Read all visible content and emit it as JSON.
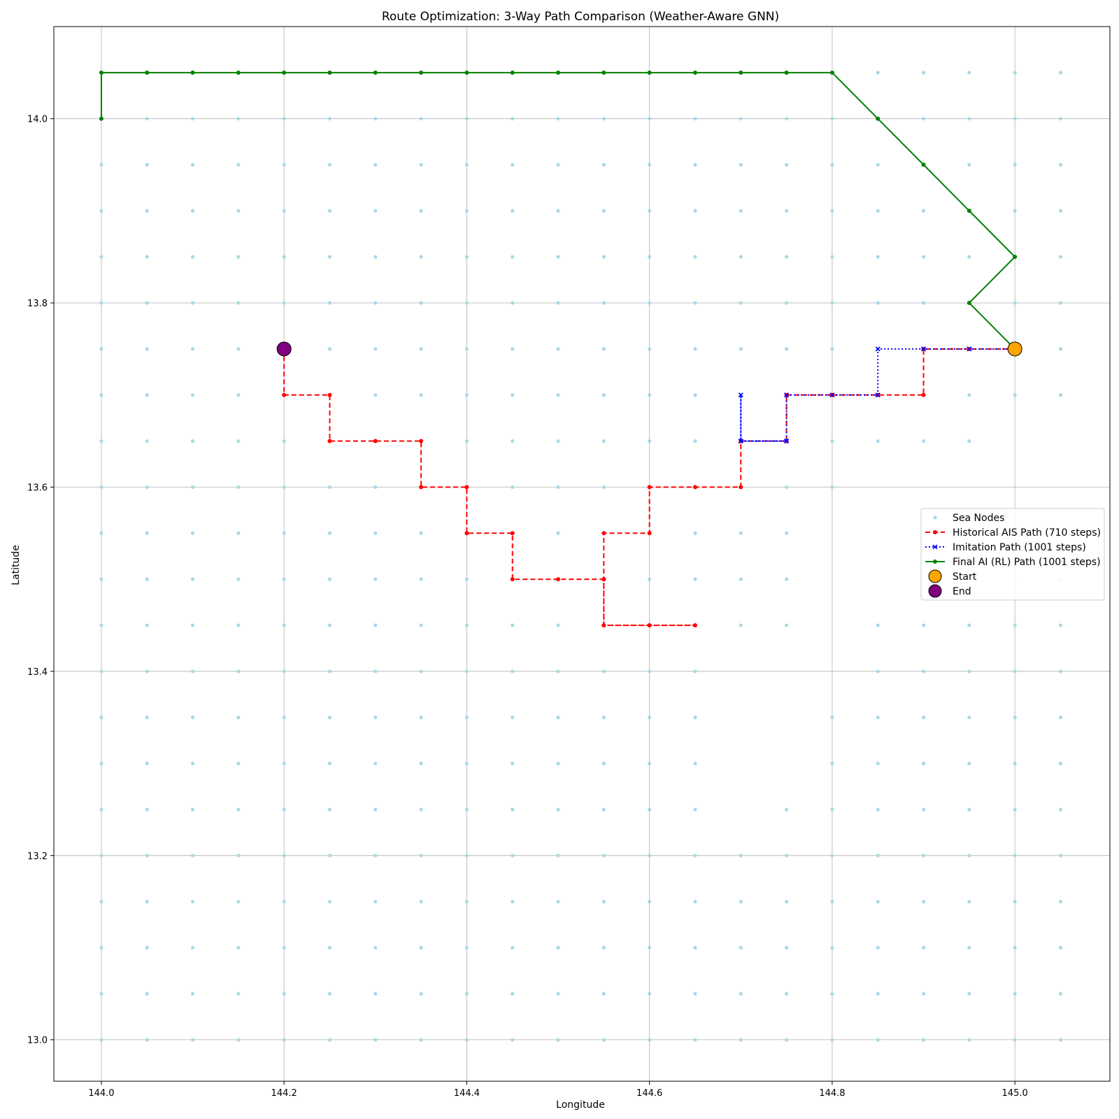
{
  "chart_data": {
    "type": "scatter",
    "title": "Route Optimization: 3-Way Path Comparison (Weather-Aware GNN)",
    "xlabel": "Longitude",
    "ylabel": "Latitude",
    "xlim": [
      143.948,
      145.104
    ],
    "ylim": [
      12.955,
      14.1
    ],
    "x_ticks": [
      "144.0",
      "144.2",
      "144.4",
      "144.6",
      "144.8",
      "145.0"
    ],
    "y_ticks": [
      "13.0",
      "13.2",
      "13.4",
      "13.6",
      "13.8",
      "14.0"
    ],
    "grid": true,
    "legend_position": "center-right",
    "sea_nodes": {
      "name": "Sea Nodes",
      "color": "#add8e6",
      "x_range": [
        144.0,
        145.05
      ],
      "y_range": [
        13.0,
        14.05
      ],
      "step": 0.05,
      "missing": [
        [
          144.7,
          13.4
        ],
        [
          144.7,
          13.35
        ],
        [
          144.7,
          13.3
        ],
        [
          144.7,
          13.25
        ],
        [
          144.75,
          13.4
        ],
        [
          144.75,
          13.35
        ],
        [
          144.75,
          13.3
        ],
        [
          144.8,
          13.55
        ],
        [
          144.8,
          13.5
        ],
        [
          144.8,
          13.45
        ],
        [
          144.8,
          13.4
        ],
        [
          144.85,
          13.6
        ],
        [
          144.85,
          13.55
        ],
        [
          144.85,
          13.5
        ],
        [
          144.9,
          13.6
        ],
        [
          144.9,
          13.55
        ],
        [
          144.9,
          13.5
        ],
        [
          144.95,
          13.6
        ],
        [
          144.95,
          13.55
        ],
        [
          144.95,
          13.5
        ],
        [
          145.0,
          13.65
        ],
        [
          145.0,
          13.6
        ],
        [
          145.0,
          13.55
        ],
        [
          145.05,
          13.65
        ],
        [
          145.05,
          13.6
        ],
        [
          145.05,
          13.55
        ]
      ]
    },
    "series": [
      {
        "name": "Historical AIS Path (710 steps)",
        "color": "#ff0000",
        "style": "dashed",
        "marker": "dot",
        "points": [
          [
            145.0,
            13.75
          ],
          [
            144.95,
            13.75
          ],
          [
            144.9,
            13.75
          ],
          [
            144.9,
            13.7
          ],
          [
            144.85,
            13.7
          ],
          [
            144.8,
            13.7
          ],
          [
            144.75,
            13.7
          ],
          [
            144.75,
            13.65
          ],
          [
            144.7,
            13.65
          ],
          [
            144.7,
            13.6
          ],
          [
            144.65,
            13.6
          ],
          [
            144.6,
            13.6
          ],
          [
            144.6,
            13.55
          ],
          [
            144.55,
            13.55
          ],
          [
            144.55,
            13.5
          ],
          [
            144.55,
            13.45
          ],
          [
            144.6,
            13.45
          ],
          [
            144.65,
            13.45
          ],
          [
            144.6,
            13.45
          ],
          [
            144.55,
            13.45
          ],
          [
            144.55,
            13.5
          ],
          [
            144.5,
            13.5
          ],
          [
            144.45,
            13.5
          ],
          [
            144.45,
            13.55
          ],
          [
            144.4,
            13.55
          ],
          [
            144.4,
            13.6
          ],
          [
            144.35,
            13.6
          ],
          [
            144.35,
            13.65
          ],
          [
            144.3,
            13.65
          ],
          [
            144.25,
            13.65
          ],
          [
            144.25,
            13.7
          ],
          [
            144.2,
            13.7
          ],
          [
            144.2,
            13.75
          ]
        ]
      },
      {
        "name": "Imitation Path (1001 steps)",
        "color": "#0000ff",
        "style": "dotted",
        "marker": "x",
        "points": [
          [
            145.0,
            13.75
          ],
          [
            144.95,
            13.75
          ],
          [
            144.9,
            13.75
          ],
          [
            144.85,
            13.75
          ],
          [
            144.85,
            13.7
          ],
          [
            144.8,
            13.7
          ],
          [
            144.75,
            13.7
          ],
          [
            144.75,
            13.65
          ],
          [
            144.7,
            13.65
          ],
          [
            144.7,
            13.7
          ],
          [
            144.7,
            13.65
          ],
          [
            144.75,
            13.65
          ]
        ]
      },
      {
        "name": "Final AI (RL) Path (1001 steps)",
        "color": "#008000",
        "style": "solid",
        "marker": "dot",
        "points": [
          [
            145.0,
            13.75
          ],
          [
            144.95,
            13.8
          ],
          [
            145.0,
            13.85
          ],
          [
            144.95,
            13.9
          ],
          [
            144.9,
            13.95
          ],
          [
            144.85,
            14.0
          ],
          [
            144.8,
            14.05
          ],
          [
            144.75,
            14.05
          ],
          [
            144.7,
            14.05
          ],
          [
            144.65,
            14.05
          ],
          [
            144.6,
            14.05
          ],
          [
            144.55,
            14.05
          ],
          [
            144.5,
            14.05
          ],
          [
            144.45,
            14.05
          ],
          [
            144.4,
            14.05
          ],
          [
            144.35,
            14.05
          ],
          [
            144.3,
            14.05
          ],
          [
            144.25,
            14.05
          ],
          [
            144.2,
            14.05
          ],
          [
            144.15,
            14.05
          ],
          [
            144.1,
            14.05
          ],
          [
            144.05,
            14.05
          ],
          [
            144.0,
            14.05
          ],
          [
            144.0,
            14.0
          ]
        ]
      }
    ],
    "start": {
      "name": "Start",
      "x": 145.0,
      "y": 13.75,
      "color": "#ffa500"
    },
    "end": {
      "name": "End",
      "x": 144.2,
      "y": 13.75,
      "color": "#800080"
    }
  }
}
